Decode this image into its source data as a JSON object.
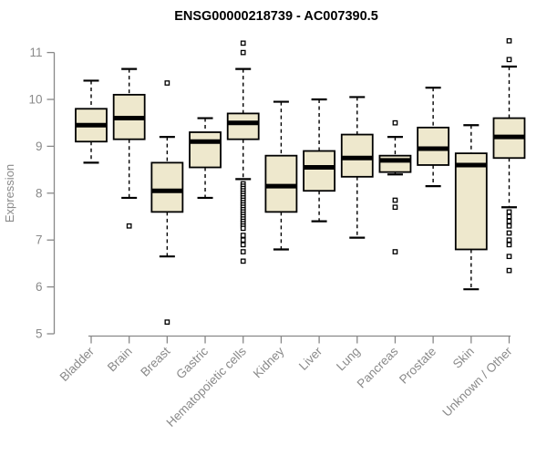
{
  "chart_data": {
    "type": "boxplot",
    "title": "ENSG00000218739 - AC007390.5",
    "ylabel": "Expression",
    "xlabel": "",
    "ylim": [
      5,
      11
    ],
    "yticks": [
      5,
      6,
      7,
      8,
      9,
      10,
      11
    ],
    "grid": false,
    "legend": null,
    "categories": [
      "Bladder",
      "Brain",
      "Breast",
      "Gastric",
      "Hematopoietic cells",
      "Kidney",
      "Liver",
      "Lung",
      "Pancreas",
      "Prostate",
      "Skin",
      "Unknown / Other"
    ],
    "series": [
      {
        "category": "Bladder",
        "whisker_low": 8.65,
        "q1": 9.1,
        "median": 9.45,
        "q3": 9.8,
        "whisker_high": 10.4,
        "outliers": []
      },
      {
        "category": "Brain",
        "whisker_low": 7.9,
        "q1": 9.15,
        "median": 9.6,
        "q3": 10.1,
        "whisker_high": 10.65,
        "outliers": [
          7.3
        ]
      },
      {
        "category": "Breast",
        "whisker_low": 6.65,
        "q1": 7.6,
        "median": 8.05,
        "q3": 8.65,
        "whisker_high": 9.2,
        "outliers": [
          10.35,
          5.25
        ]
      },
      {
        "category": "Gastric",
        "whisker_low": 7.9,
        "q1": 8.55,
        "median": 9.1,
        "q3": 9.3,
        "whisker_high": 9.6,
        "outliers": []
      },
      {
        "category": "Hematopoietic cells",
        "whisker_low": 8.3,
        "q1": 9.15,
        "median": 9.5,
        "q3": 9.7,
        "whisker_high": 10.65,
        "outliers": [
          11.2,
          11.0,
          8.2,
          8.15,
          8.1,
          8.05,
          8.0,
          7.95,
          7.9,
          7.85,
          7.8,
          7.75,
          7.7,
          7.65,
          7.6,
          7.55,
          7.5,
          7.45,
          7.4,
          7.35,
          7.3,
          7.25,
          7.1,
          7.0,
          6.9,
          6.75,
          6.55
        ]
      },
      {
        "category": "Kidney",
        "whisker_low": 6.8,
        "q1": 7.6,
        "median": 8.15,
        "q3": 8.8,
        "whisker_high": 9.95,
        "outliers": []
      },
      {
        "category": "Liver",
        "whisker_low": 7.4,
        "q1": 8.05,
        "median": 8.55,
        "q3": 8.9,
        "whisker_high": 10.0,
        "outliers": []
      },
      {
        "category": "Lung",
        "whisker_low": 7.05,
        "q1": 8.35,
        "median": 8.75,
        "q3": 9.25,
        "whisker_high": 10.05,
        "outliers": []
      },
      {
        "category": "Pancreas",
        "whisker_low": 8.4,
        "q1": 8.45,
        "median": 8.7,
        "q3": 8.8,
        "whisker_high": 9.2,
        "outliers": [
          9.5,
          7.85,
          7.7,
          6.75
        ]
      },
      {
        "category": "Prostate",
        "whisker_low": 8.15,
        "q1": 8.6,
        "median": 8.95,
        "q3": 9.4,
        "whisker_high": 10.25,
        "outliers": []
      },
      {
        "category": "Skin",
        "whisker_low": 5.95,
        "q1": 6.8,
        "median": 8.6,
        "q3": 8.85,
        "whisker_high": 9.45,
        "outliers": []
      },
      {
        "category": "Unknown / Other",
        "whisker_low": 7.7,
        "q1": 8.75,
        "median": 9.2,
        "q3": 9.6,
        "whisker_high": 10.7,
        "outliers": [
          11.25,
          10.85,
          7.6,
          7.5,
          7.4,
          7.3,
          7.15,
          7.0,
          6.9,
          6.65,
          6.35
        ]
      }
    ],
    "colors": {
      "box_fill": "#EEE8CD",
      "box_stroke": "#000000",
      "median": "#000000",
      "whisker": "#000000",
      "outlier": "#000000",
      "axis": "#888888",
      "tick_label": "#8A8A8A",
      "title": "#000000",
      "background": "#FFFFFF"
    }
  }
}
